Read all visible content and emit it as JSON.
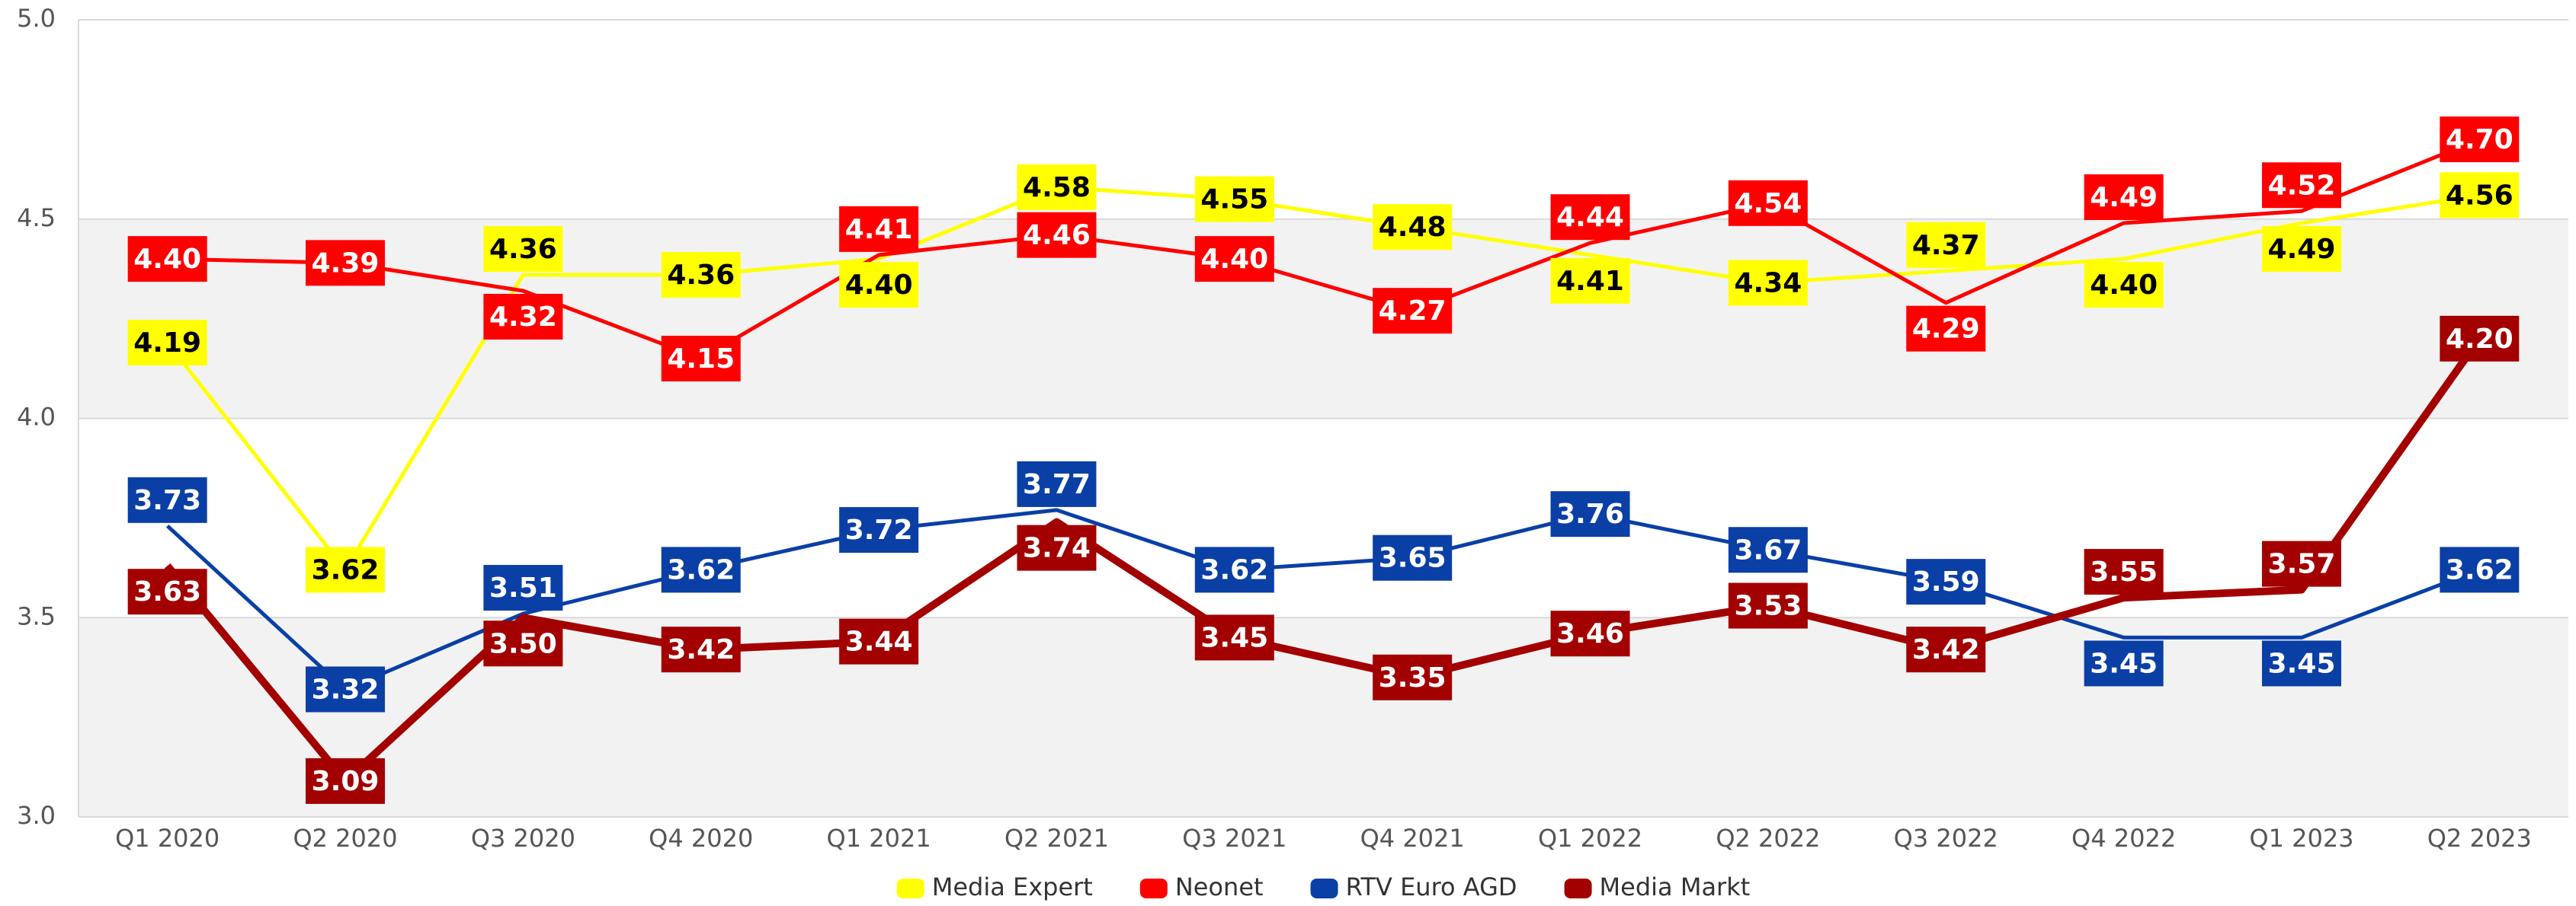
{
  "chart_data": {
    "type": "line",
    "categories": [
      "Q1 2020",
      "Q2 2020",
      "Q3 2020",
      "Q4 2020",
      "Q1 2021",
      "Q2 2021",
      "Q3 2021",
      "Q4 2021",
      "Q1 2022",
      "Q2 2022",
      "Q3 2022",
      "Q4 2022",
      "Q1 2023",
      "Q2 2023"
    ],
    "series": [
      {
        "name": "Media Expert",
        "color": "#ffff00",
        "values": [
          4.19,
          3.62,
          4.36,
          4.36,
          4.4,
          4.58,
          4.55,
          4.48,
          4.41,
          4.34,
          4.37,
          4.4,
          4.49,
          4.56
        ],
        "value_labels": [
          "4.19",
          "3.62",
          "4.36",
          "4.36",
          "4.40",
          "4.58",
          "4.55",
          "4.48",
          "4.41",
          "4.34",
          "4.37",
          "4.40",
          "4.49",
          "4.56"
        ]
      },
      {
        "name": "Neonet",
        "color": "#ff0000",
        "values": [
          4.4,
          4.39,
          4.32,
          4.15,
          4.41,
          4.46,
          4.4,
          4.27,
          4.44,
          4.54,
          4.29,
          4.49,
          4.52,
          4.7
        ],
        "value_labels": [
          "4.40",
          "4.39",
          "4.32",
          "4.15",
          "4.41",
          "4.46",
          "4.40",
          "4.27",
          "4.44",
          "4.54",
          "4.29",
          "4.49",
          "4.52",
          "4.70"
        ]
      },
      {
        "name": "RTV Euro AGD",
        "color": "#0a3fa6",
        "values": [
          3.73,
          3.32,
          3.51,
          3.62,
          3.72,
          3.77,
          3.62,
          3.65,
          3.76,
          3.67,
          3.59,
          3.45,
          3.45,
          3.62
        ],
        "value_labels": [
          "3.73",
          "3.32",
          "3.51",
          "3.62",
          "3.72",
          "3.77",
          "3.62",
          "3.65",
          "3.76",
          "3.67",
          "3.59",
          "3.45",
          "3.45",
          "3.62"
        ]
      },
      {
        "name": "Media Markt",
        "color": "#a30000",
        "values": [
          3.63,
          3.09,
          3.5,
          3.42,
          3.44,
          3.74,
          3.45,
          3.35,
          3.46,
          3.53,
          3.42,
          3.55,
          3.57,
          4.2
        ],
        "value_labels": [
          "3.63",
          "3.09",
          "3.50",
          "3.42",
          "3.44",
          "3.74",
          "3.45",
          "3.35",
          "3.46",
          "3.53",
          "3.42",
          "3.55",
          "3.57",
          "4.20"
        ]
      }
    ],
    "ylim": [
      3.0,
      5.0
    ],
    "yticks": [
      {
        "value": 3.0,
        "label": "3.0"
      },
      3.5,
      {
        "value": 4.0,
        "label": "4.0"
      },
      4.5,
      {
        "value": 5.0,
        "label": "5.0"
      }
    ],
    "legend": "bottom"
  }
}
